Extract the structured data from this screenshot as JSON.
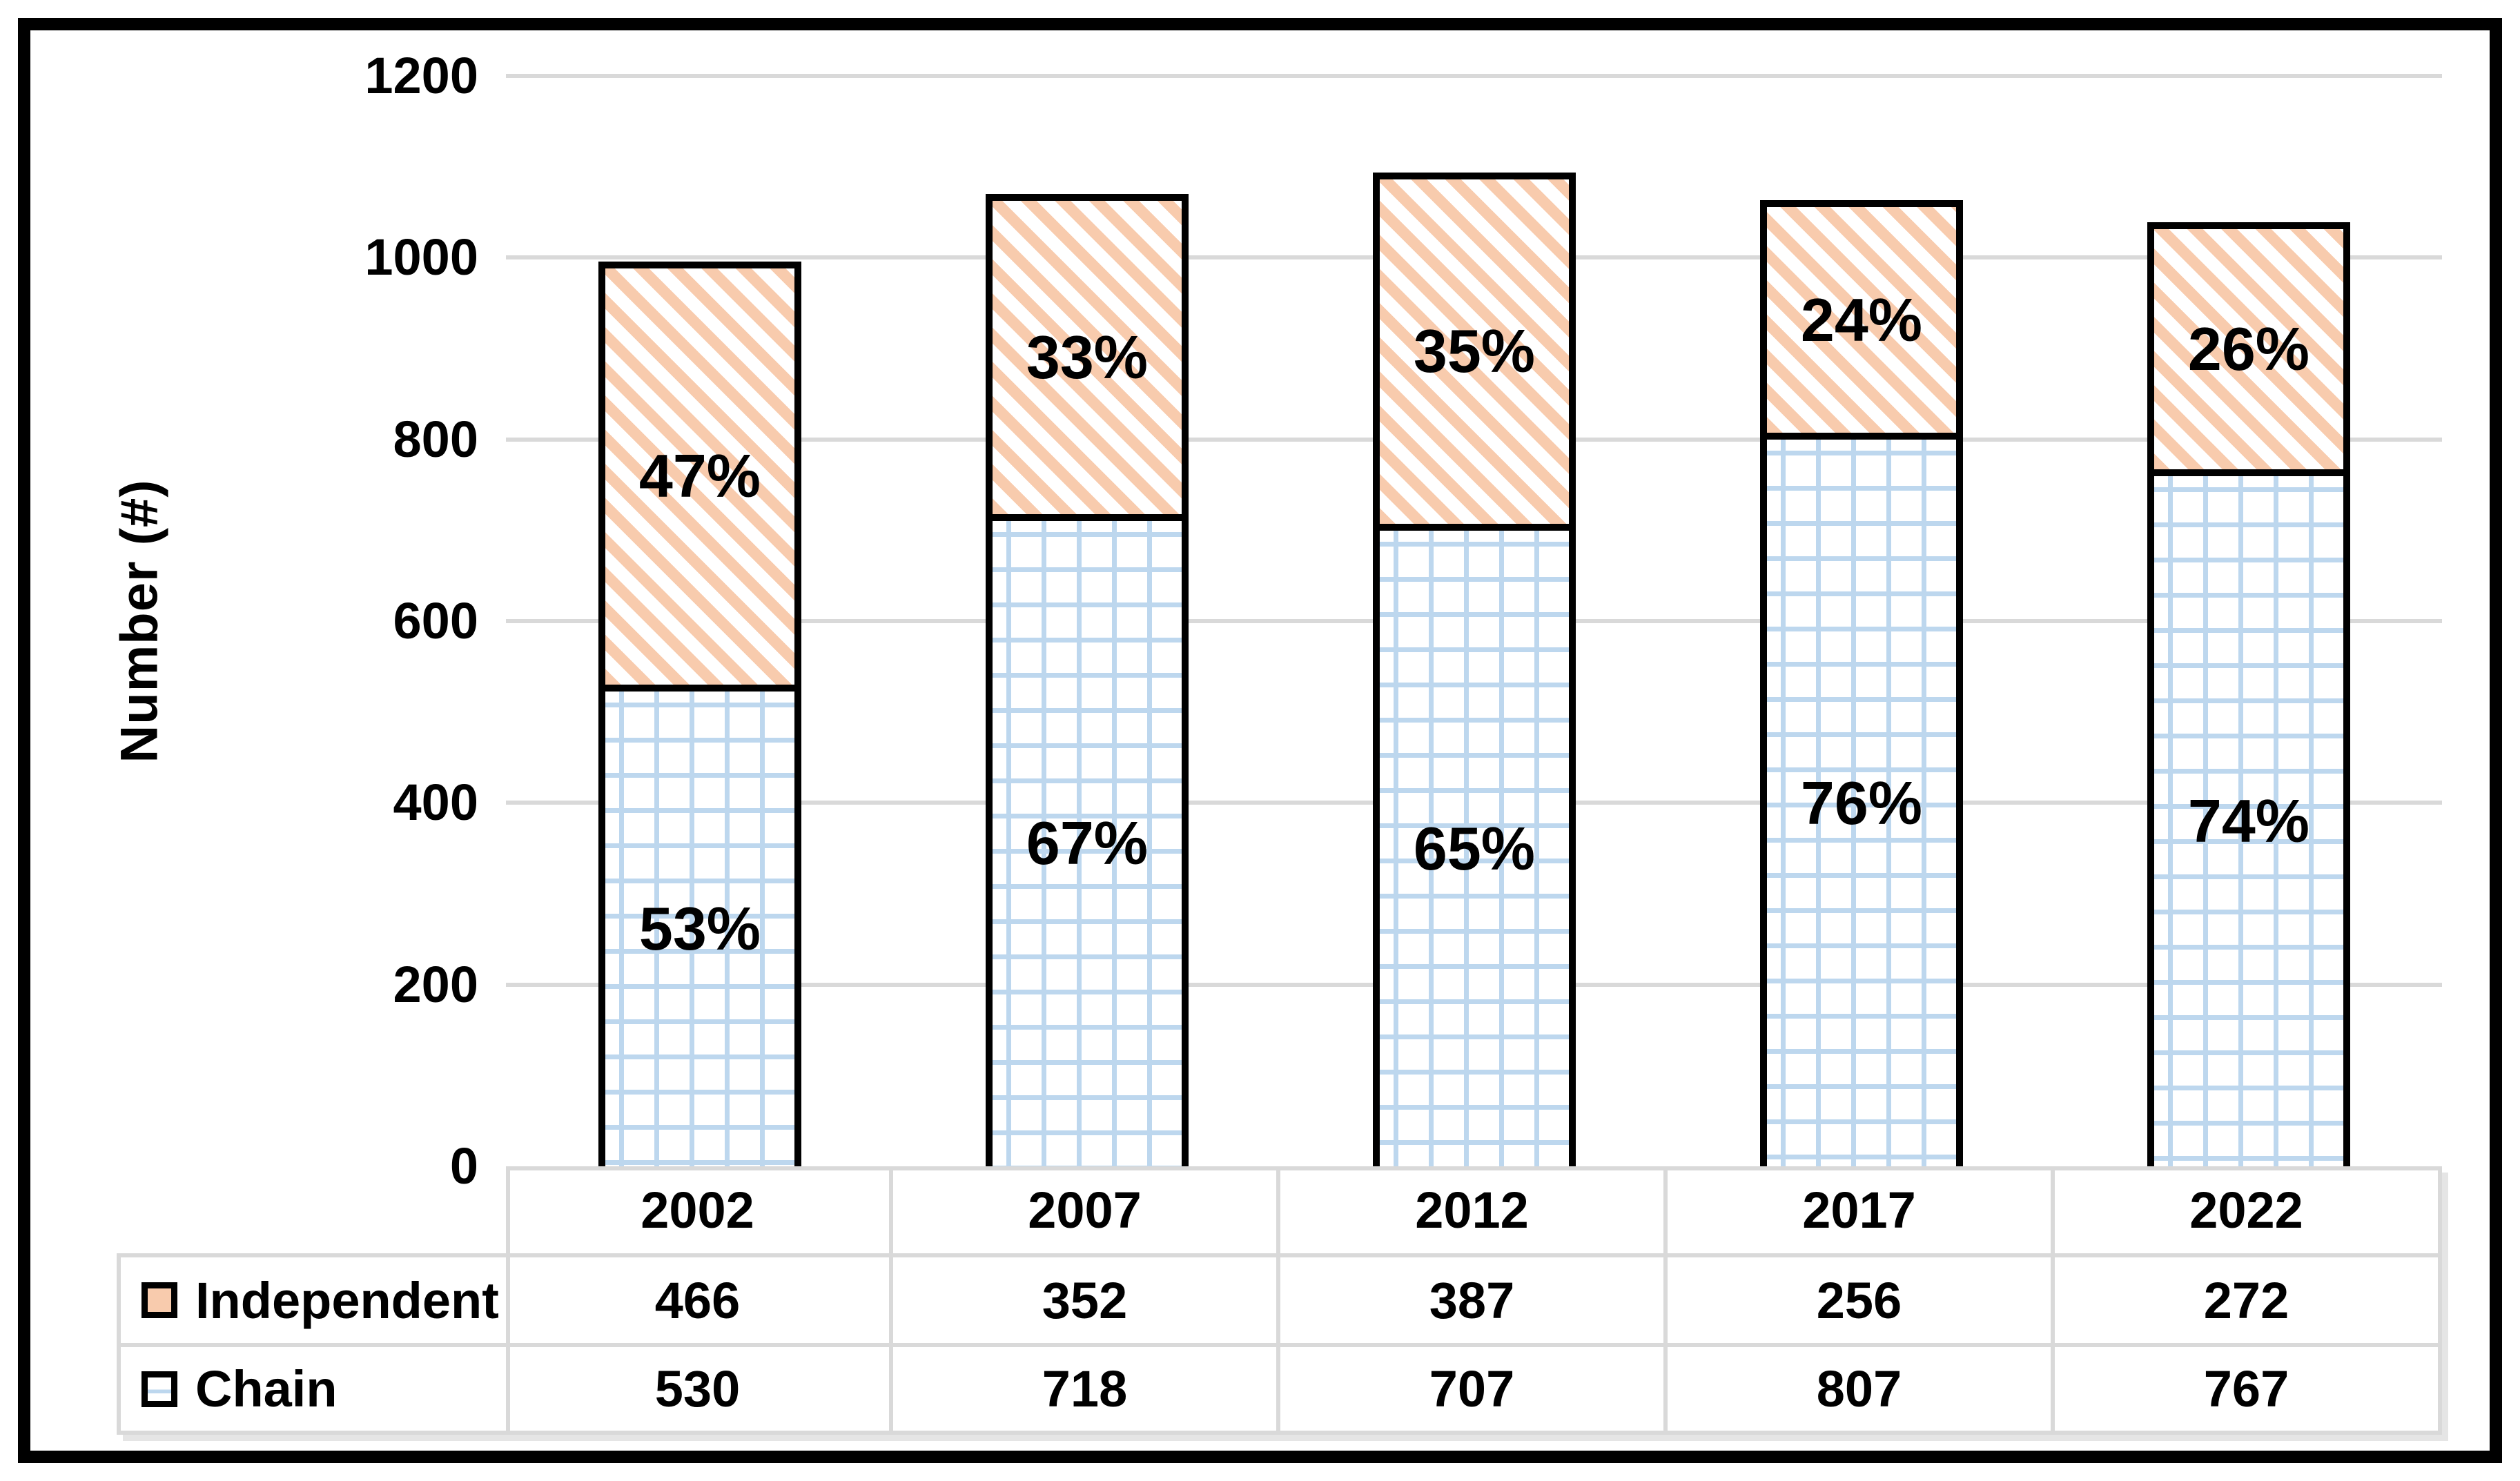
{
  "figure": {
    "background": "#FFFFFF",
    "border_color": "#000000"
  },
  "y_axis": {
    "title": "Number (#)",
    "min": 0,
    "max": 1200,
    "tick_interval": 200,
    "ticks": [
      {
        "value": 0,
        "label": "0"
      },
      {
        "value": 200,
        "label": "200"
      },
      {
        "value": 400,
        "label": "400"
      },
      {
        "value": 600,
        "label": "600"
      },
      {
        "value": 800,
        "label": "800"
      },
      {
        "value": 1000,
        "label": "1000"
      },
      {
        "value": 1200,
        "label": "1200"
      }
    ]
  },
  "chart_data": {
    "type": "bar",
    "stacked": true,
    "title": "",
    "xlabel": "",
    "ylabel": "Number (#)",
    "ylim": [
      0,
      1200
    ],
    "gridlines": true,
    "legend_position": "table-rows-left",
    "data_table": true,
    "categories": [
      "2002",
      "2007",
      "2012",
      "2017",
      "2022"
    ],
    "stack_order_bottom_to_top": [
      "Chain",
      "Independent"
    ],
    "series": [
      {
        "name": "Independent",
        "pattern": "diagonal-stripes",
        "color": "#F8CBAD",
        "values": [
          466,
          352,
          387,
          256,
          272
        ],
        "percent_labels": [
          "47%",
          "33%",
          "35%",
          "24%",
          "26%"
        ]
      },
      {
        "name": "Chain",
        "pattern": "grid",
        "color": "#BDD7EE",
        "values": [
          530,
          718,
          707,
          807,
          767
        ],
        "percent_labels": [
          "53%",
          "67%",
          "65%",
          "76%",
          "74%"
        ]
      }
    ]
  },
  "colors": {
    "independent_fill": "#F8CBAD",
    "chain_grid": "#BDD7EE",
    "gridline": "#D9D9D9",
    "table_border": "#D9D9D9",
    "bar_border": "#000000",
    "figure_border": "#000000",
    "text": "#000000",
    "background": "#FFFFFF"
  }
}
